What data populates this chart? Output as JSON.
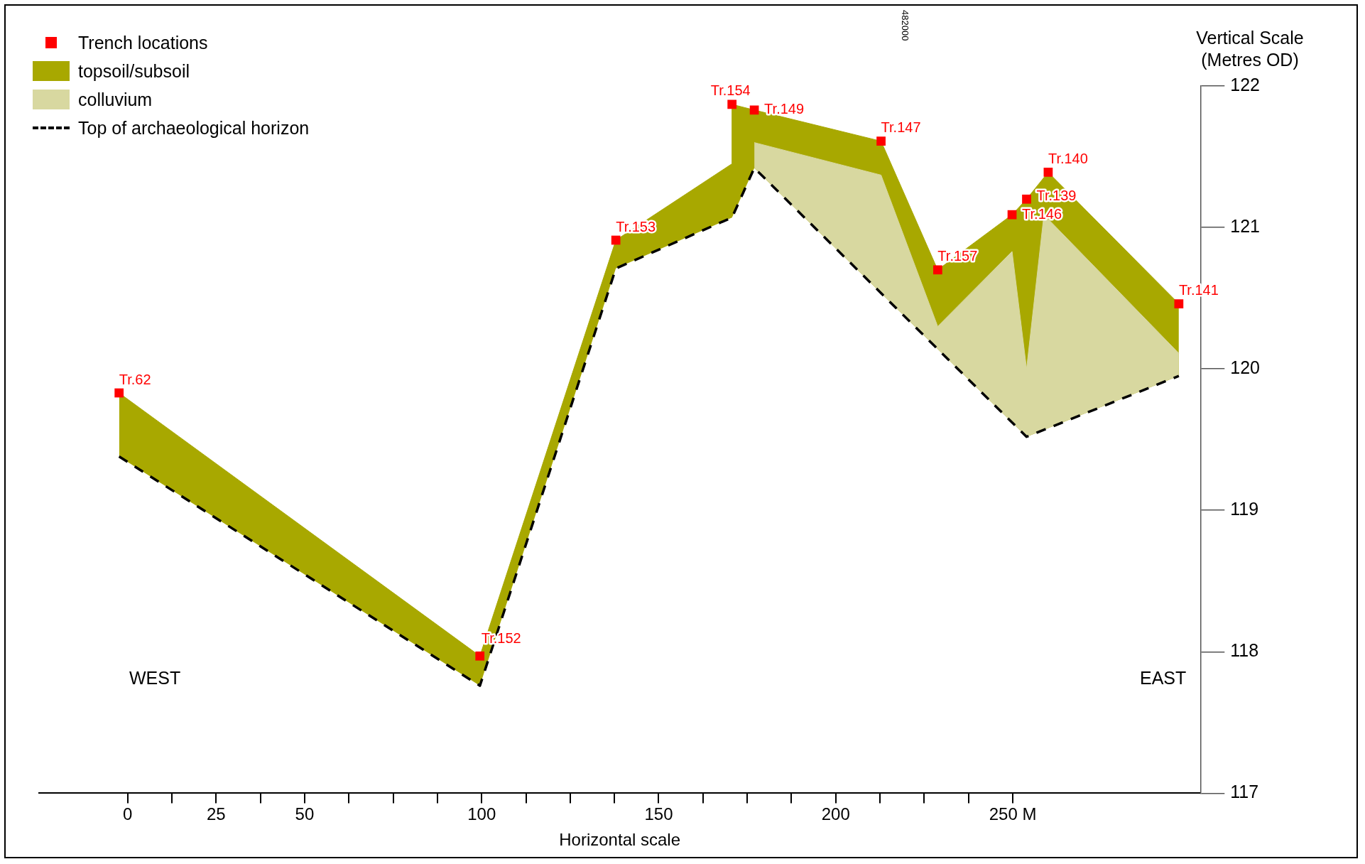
{
  "chart_data": {
    "type": "area",
    "xlabel": "Horizontal scale",
    "ylabel": "Vertical Scale (Metres OD)",
    "legend": "top left",
    "annotations": [
      "WEST",
      "EAST",
      "482000"
    ],
    "xlim": [
      -25,
      303
    ],
    "ylim": [
      117,
      122
    ],
    "xticks": [
      0,
      {
        "value": 12.5,
        "label": null
      },
      25,
      {
        "value": 37.5,
        "label": null
      },
      50,
      {
        "value": 62.5,
        "label": null
      },
      {
        "value": 75,
        "label": null
      },
      {
        "value": 87.5,
        "label": null
      },
      100,
      {
        "value": 112.5,
        "label": null
      },
      {
        "value": 125,
        "label": null
      },
      {
        "value": 137.5,
        "label": null
      },
      150,
      {
        "value": 162.5,
        "label": null
      },
      {
        "value": 175,
        "label": null
      },
      {
        "value": 187.5,
        "label": null
      },
      200,
      {
        "value": 212.5,
        "label": null
      },
      {
        "value": 225,
        "label": null
      },
      {
        "value": 237.5,
        "label": null
      },
      {
        "value": 250,
        "label": "250 M"
      }
    ],
    "yticks": [
      117,
      118,
      119,
      120,
      121,
      122
    ],
    "series": [
      {
        "name": "Trench locations",
        "type": "scatter",
        "color": "#ff0000",
        "marker": "square",
        "x": [
          -2.4,
          99.5,
          137.9,
          170.7,
          177.0,
          212.8,
          228.8,
          249.8,
          253.9,
          260.0,
          296.9
        ],
        "values": [
          119.83,
          117.97,
          120.91,
          121.87,
          121.83,
          121.61,
          120.7,
          121.09,
          121.2,
          121.39,
          120.46
        ],
        "value_labels": [
          "Tr.62",
          "Tr.152",
          "Tr.153",
          "Tr.154",
          "Tr.149",
          "Tr.147",
          "Tr.157",
          "Tr.146",
          "Tr.139",
          "Tr.140",
          "Tr.141"
        ]
      },
      {
        "name": "Top of archaeological horizon",
        "type": "line",
        "color": "#000000",
        "line_style": "dashed",
        "marker": "none",
        "x": [
          -2.4,
          99.5,
          137.9,
          170.7,
          177.0,
          253.9,
          296.9
        ],
        "values": [
          119.38,
          117.76,
          120.71,
          121.07,
          121.42,
          119.52,
          119.95
        ]
      },
      {
        "name": "colluvium",
        "type": "area",
        "color": "#d8d8a0",
        "x": [
          177.0,
          212.8,
          228.8,
          249.8,
          253.9,
          258.8,
          296.9
        ],
        "values": [
          121.6,
          121.37,
          120.3,
          120.83,
          120.0,
          121.09,
          120.11
        ]
      },
      {
        "name": "topsoil/subsoil",
        "type": "area",
        "color": "#a8a800",
        "x": [
          -2.4,
          99.5,
          137.9,
          170.7,
          170.7,
          177.0,
          212.8,
          228.8,
          249.8,
          253.9,
          260.0,
          296.9
        ],
        "values": [
          119.83,
          117.97,
          120.91,
          121.45,
          121.87,
          121.83,
          121.61,
          120.7,
          121.09,
          121.2,
          121.39,
          120.46
        ]
      }
    ]
  }
}
